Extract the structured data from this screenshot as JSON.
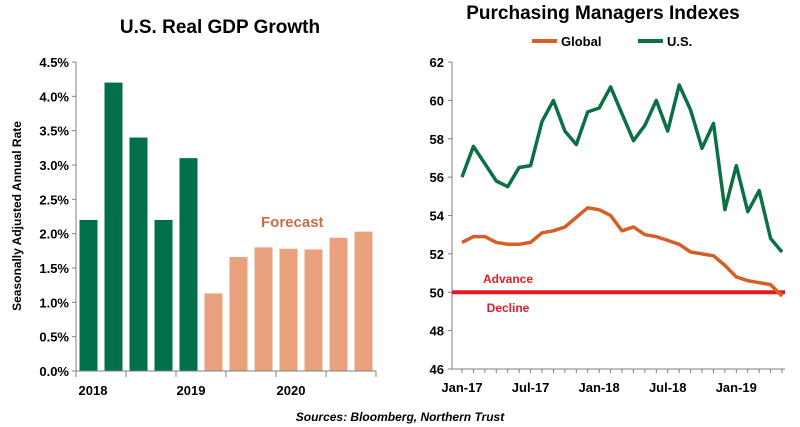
{
  "source": "Sources: Bloomberg, Northern Trust",
  "chart_data": [
    {
      "type": "bar",
      "title": "U.S. Real GDP Growth",
      "ylabel": "Seasonally Adjusted Annual Rate",
      "ylim": [
        0,
        4.5
      ],
      "yticks": [
        "0.0%",
        "0.5%",
        "1.0%",
        "1.5%",
        "2.0%",
        "2.5%",
        "3.0%",
        "3.5%",
        "4.0%",
        "4.5%"
      ],
      "xtick_labels": [
        "2018",
        "2019",
        "2020"
      ],
      "annotation": "Forecast",
      "colors": {
        "actual": "#006f4a",
        "forecast": "#e9a07d"
      },
      "values": [
        2.2,
        4.2,
        3.4,
        2.2,
        3.1,
        1.13,
        1.66,
        1.8,
        1.78,
        1.77,
        1.94,
        2.03
      ],
      "forecast_flags": [
        false,
        false,
        false,
        false,
        false,
        true,
        true,
        true,
        true,
        true,
        true,
        true
      ],
      "grid": false,
      "legend": "none"
    },
    {
      "type": "line",
      "title": "Purchasing Managers Indexes",
      "ylim": [
        46,
        62
      ],
      "yticks": [
        "46",
        "48",
        "50",
        "52",
        "54",
        "56",
        "58",
        "60",
        "62"
      ],
      "xtick_labels": [
        "Jan-17",
        "Jul-17",
        "Jan-18",
        "Jul-18",
        "Jan-19"
      ],
      "legend_position": "top",
      "threshold": {
        "value": 50,
        "color": "#e31b23"
      },
      "annotations": [
        "Advance",
        "Decline"
      ],
      "series": [
        {
          "name": "Global",
          "color": "#d45f27",
          "values": [
            52.6,
            52.9,
            52.9,
            52.6,
            52.5,
            52.5,
            52.6,
            53.1,
            53.2,
            53.4,
            53.9,
            54.4,
            54.3,
            54.0,
            53.2,
            53.4,
            53.0,
            52.9,
            52.7,
            52.5,
            52.1,
            52.0,
            51.9,
            51.4,
            50.8,
            50.6,
            50.5,
            50.4,
            49.8
          ]
        },
        {
          "name": "U.S.",
          "color": "#0d7044",
          "values": [
            56.0,
            57.6,
            56.7,
            55.8,
            55.5,
            56.5,
            56.6,
            58.9,
            60.0,
            58.4,
            57.7,
            59.4,
            59.6,
            60.7,
            59.3,
            57.9,
            58.7,
            60.0,
            58.4,
            60.8,
            59.5,
            57.5,
            58.8,
            54.3,
            56.6,
            54.2,
            55.3,
            52.8,
            52.1
          ]
        }
      ]
    }
  ]
}
